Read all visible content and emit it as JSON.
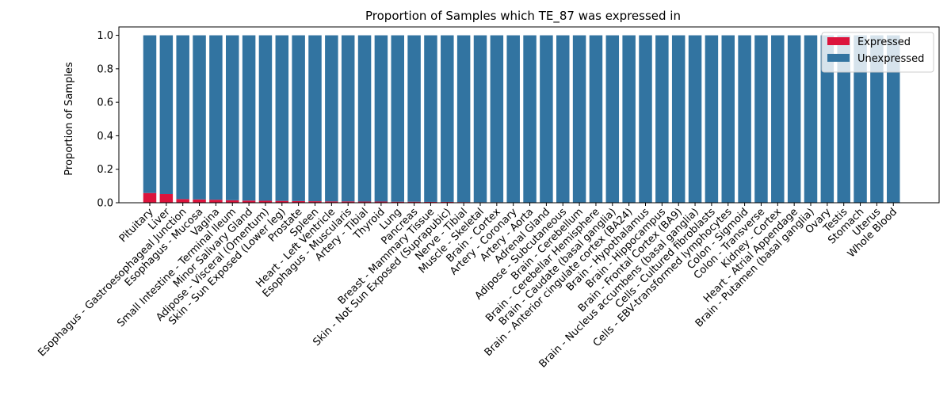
{
  "chart_data": {
    "type": "bar",
    "stacked": true,
    "title": "Proportion of Samples which TE_87 was expressed in",
    "xlabel": "",
    "ylabel": "Proportion of Samples",
    "ylim": [
      0,
      1.05
    ],
    "yticks": [
      0.0,
      0.2,
      0.4,
      0.6,
      0.8,
      1.0
    ],
    "ytick_labels": [
      "0.0",
      "0.2",
      "0.4",
      "0.6",
      "0.8",
      "1.0"
    ],
    "grid": false,
    "legend_position": "top-right",
    "categories": [
      "Pituitary",
      "Liver",
      "Esophagus - Gastroesophageal Junction",
      "Esophagus - Mucosa",
      "Vagina",
      "Small Intestine - Terminal Ileum",
      "Minor Salivary Gland",
      "Adipose - Visceral (Omentum)",
      "Skin - Sun Exposed (Lower leg)",
      "Prostate",
      "Spleen",
      "Heart - Left Ventricle",
      "Esophagus - Muscularis",
      "Artery - Tibial",
      "Thyroid",
      "Lung",
      "Pancreas",
      "Breast - Mammary Tissue",
      "Skin - Not Sun Exposed (Suprapubic)",
      "Nerve - Tibial",
      "Muscle - Skeletal",
      "Brain - Cortex",
      "Artery - Coronary",
      "Artery - Aorta",
      "Adrenal Gland",
      "Adipose - Subcutaneous",
      "Brain - Cerebellum",
      "Brain - Cerebellar Hemisphere",
      "Brain - Caudate (basal ganglia)",
      "Brain - Anterior cingulate cortex (BA24)",
      "Brain - Hypothalamus",
      "Brain - Hippocampus",
      "Brain - Frontal Cortex (BA9)",
      "Brain - Nucleus accumbens (basal ganglia)",
      "Cells - Cultured fibroblasts",
      "Cells - EBV-transformed lymphocytes",
      "Colon - Sigmoid",
      "Colon - Transverse",
      "Kidney - Cortex",
      "Heart - Atrial Appendage",
      "Brain - Putamen (basal ganglia)",
      "Ovary",
      "Testis",
      "Stomach",
      "Uterus",
      "Whole Blood"
    ],
    "series": [
      {
        "name": "Expressed",
        "color": "#dc143c",
        "values": [
          0.058,
          0.052,
          0.022,
          0.02,
          0.018,
          0.015,
          0.013,
          0.012,
          0.011,
          0.01,
          0.009,
          0.008,
          0.008,
          0.007,
          0.007,
          0.006,
          0.006,
          0.005,
          0.005,
          0.004,
          0.003,
          0.003,
          0.002,
          0.002,
          0.002,
          0.001,
          0.001,
          0.001,
          0.001,
          0.001,
          0.001,
          0.001,
          0.001,
          0.001,
          0.001,
          0,
          0,
          0,
          0,
          0,
          0,
          0,
          0,
          0,
          0,
          0
        ]
      },
      {
        "name": "Unexpressed",
        "color": "#3274a1",
        "values": [
          0.942,
          0.948,
          0.978,
          0.98,
          0.982,
          0.985,
          0.987,
          0.988,
          0.989,
          0.99,
          0.991,
          0.992,
          0.992,
          0.993,
          0.993,
          0.994,
          0.994,
          0.995,
          0.995,
          0.996,
          0.997,
          0.997,
          0.998,
          0.998,
          0.998,
          0.999,
          0.999,
          0.999,
          0.999,
          0.999,
          0.999,
          0.999,
          0.999,
          0.999,
          0.999,
          1,
          1,
          1,
          1,
          1,
          1,
          1,
          1,
          1,
          1,
          1
        ]
      }
    ]
  }
}
